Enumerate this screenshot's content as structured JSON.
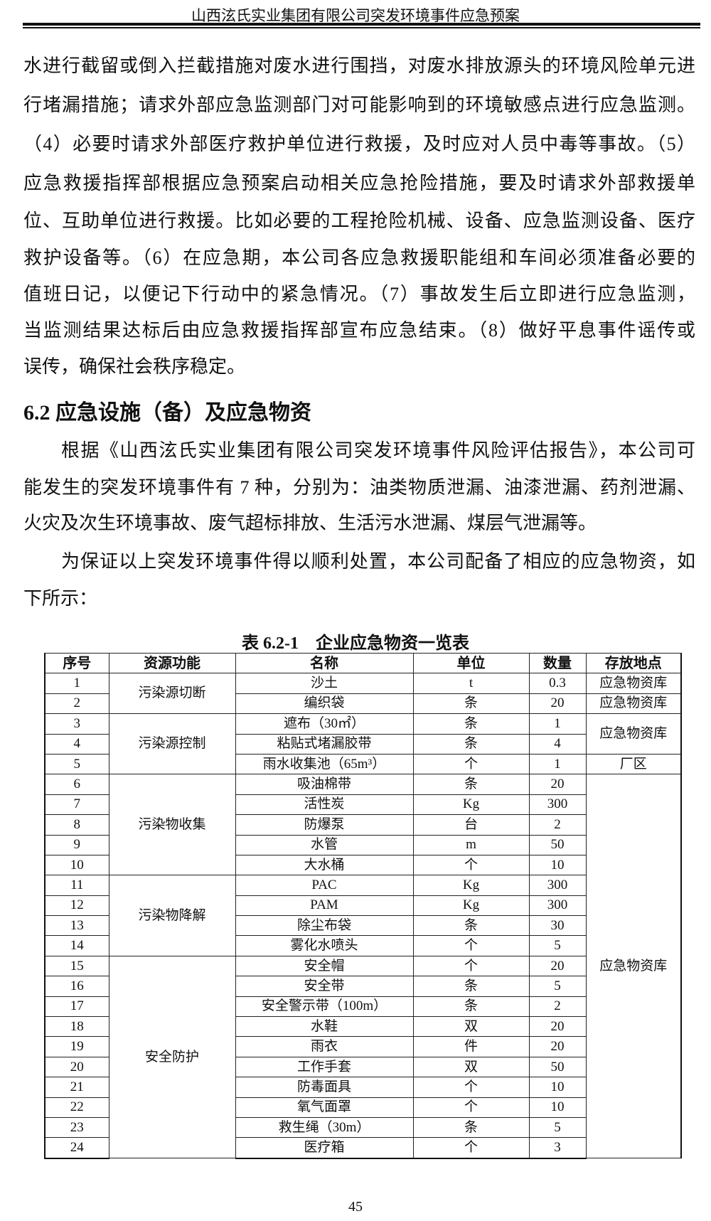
{
  "header": {
    "title": "山西泫氏实业集团有限公司突发环境事件应急预案"
  },
  "para1_lines": [
    "水进行截留或倒入拦截措施对废水进行围挡，对废水排放源头的环境风险单元进",
    "行堵漏措施；请求外部应急监测部门对可能影响到的环境敏感点进行应急监测。",
    "（4）必要时请求外部医疗救护单位进行救援，及时应对人员中毒等事故。（5）",
    "应急救援指挥部根据应急预案启动相关应急抢险措施，要及时请求外部救援单",
    "位、互助单位进行救援。比如必要的工程抢险机械、设备、应急监测设备、医疗",
    "救护设备等。（6）在应急期，本公司各应急救援职能组和车间必须准备必要的",
    "值班日记，以便记下行动中的紧急情况。（7）事故发生后立即进行应急监测，",
    "当监测结果达标后由应急救援指挥部宣布应急结束。（8）做好平息事件谣传或",
    "误传，确保社会秩序稳定。"
  ],
  "section_heading": "6.2 应急设施（备）及应急物资",
  "para2_lines": [
    "根据《山西泫氏实业集团有限公司突发环境事件风险评估报告》，本公司可",
    "能发生的突发环境事件有 7 种，分别为：油类物质泄漏、油漆泄漏、药剂泄漏、",
    "火灾及次生环境事故、废气超标排放、生活污水泄漏、煤层气泄漏等。"
  ],
  "para3_lines": [
    "为保证以上突发环境事件得以顺利处置，本公司配备了相应的应急物资，如",
    "下所示："
  ],
  "table": {
    "caption": "表 6.2-1　企业应急物资一览表",
    "headers": [
      "序号",
      "资源功能",
      "名称",
      "单位",
      "数量",
      "存放地点"
    ],
    "rows": [
      {
        "no": "1",
        "name": "沙土",
        "unit": "t",
        "qty": "0.3"
      },
      {
        "no": "2",
        "name": "编织袋",
        "unit": "条",
        "qty": "20"
      },
      {
        "no": "3",
        "name": "遮布（30㎡）",
        "unit": "条",
        "qty": "1"
      },
      {
        "no": "4",
        "name": "粘贴式堵漏胶带",
        "unit": "条",
        "qty": "4"
      },
      {
        "no": "5",
        "name": "雨水收集池（65m³）",
        "unit": "个",
        "qty": "1"
      },
      {
        "no": "6",
        "name": "吸油棉带",
        "unit": "条",
        "qty": "20"
      },
      {
        "no": "7",
        "name": "活性炭",
        "unit": "Kg",
        "qty": "300"
      },
      {
        "no": "8",
        "name": "防爆泵",
        "unit": "台",
        "qty": "2"
      },
      {
        "no": "9",
        "name": "水管",
        "unit": "m",
        "qty": "50"
      },
      {
        "no": "10",
        "name": "大水桶",
        "unit": "个",
        "qty": "10"
      },
      {
        "no": "11",
        "name": "PAC",
        "unit": "Kg",
        "qty": "300"
      },
      {
        "no": "12",
        "name": "PAM",
        "unit": "Kg",
        "qty": "300"
      },
      {
        "no": "13",
        "name": "除尘布袋",
        "unit": "条",
        "qty": "30"
      },
      {
        "no": "14",
        "name": "雾化水喷头",
        "unit": "个",
        "qty": "5"
      },
      {
        "no": "15",
        "name": "安全帽",
        "unit": "个",
        "qty": "20"
      },
      {
        "no": "16",
        "name": "安全带",
        "unit": "条",
        "qty": "5"
      },
      {
        "no": "17",
        "name": "安全警示带（100m）",
        "unit": "条",
        "qty": "2"
      },
      {
        "no": "18",
        "name": "水鞋",
        "unit": "双",
        "qty": "20"
      },
      {
        "no": "19",
        "name": "雨衣",
        "unit": "件",
        "qty": "20"
      },
      {
        "no": "20",
        "name": "工作手套",
        "unit": "双",
        "qty": "50"
      },
      {
        "no": "21",
        "name": "防毒面具",
        "unit": "个",
        "qty": "10"
      },
      {
        "no": "22",
        "name": "氧气面罩",
        "unit": "个",
        "qty": "10"
      },
      {
        "no": "23",
        "name": "救生绳（30m）",
        "unit": "条",
        "qty": "5"
      },
      {
        "no": "24",
        "name": "医疗箱",
        "unit": "个",
        "qty": "3"
      }
    ],
    "functions": [
      {
        "label": "污染源切断",
        "rows": 2
      },
      {
        "label": "污染源控制",
        "rows": 3
      },
      {
        "label": "污染物收集",
        "rows": 5
      },
      {
        "label": "污染物降解",
        "rows": 4
      },
      {
        "label": "安全防护",
        "rows": 10
      }
    ],
    "storage": [
      {
        "label": "应急物资库",
        "rows": 1
      },
      {
        "label": "应急物资库",
        "rows": 1
      },
      {
        "label": "应急物资库",
        "rows": 2
      },
      {
        "label": "厂区",
        "rows": 1
      },
      {
        "label": "应急物资库",
        "rows": 19
      }
    ]
  },
  "page_number": "45"
}
